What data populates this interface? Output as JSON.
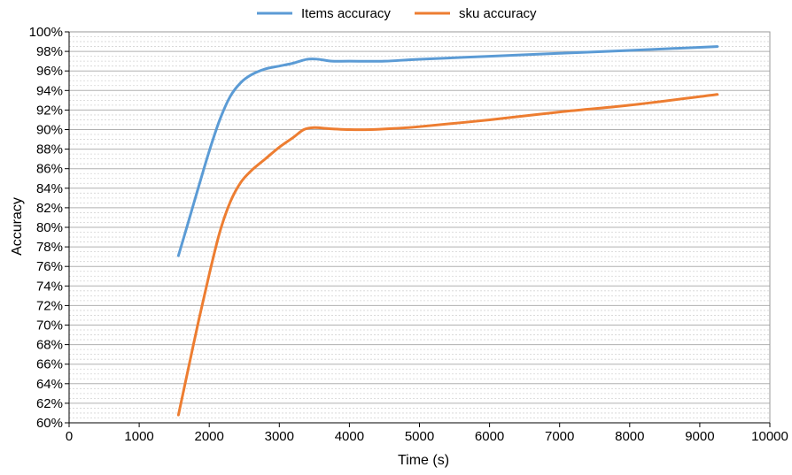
{
  "chart_data": {
    "type": "line",
    "xlabel": "Time (s)",
    "ylabel": "Accuracy",
    "xlim": [
      0,
      10000
    ],
    "ylim": [
      60,
      100
    ],
    "x_ticks": [
      0,
      1000,
      2000,
      3000,
      4000,
      5000,
      6000,
      7000,
      8000,
      9000,
      10000
    ],
    "x_tick_labels": [
      "0",
      "1000",
      "2000",
      "3000",
      "4000",
      "5000",
      "6000",
      "7000",
      "8000",
      "9000",
      "10000"
    ],
    "y_ticks": [
      60,
      62,
      64,
      66,
      68,
      70,
      72,
      74,
      76,
      78,
      80,
      82,
      84,
      86,
      88,
      90,
      92,
      94,
      96,
      98,
      100
    ],
    "y_tick_labels": [
      "60%",
      "62%",
      "64%",
      "66%",
      "68%",
      "70%",
      "72%",
      "74%",
      "76%",
      "78%",
      "80%",
      "82%",
      "84%",
      "86%",
      "88%",
      "90%",
      "92%",
      "94%",
      "96%",
      "98%",
      "100%"
    ],
    "grid": true,
    "legend_position": "top-center",
    "series": [
      {
        "name": "Items accuracy",
        "color": "#5b9bd5",
        "x": [
          1560,
          1700,
          1850,
          2000,
          2150,
          2300,
          2450,
          2600,
          2800,
          3000,
          3200,
          3400,
          3550,
          3750,
          4000,
          4500,
          5000,
          6000,
          7000,
          8000,
          9250
        ],
        "y": [
          77.1,
          80.5,
          84.2,
          87.8,
          91.0,
          93.4,
          94.8,
          95.6,
          96.2,
          96.5,
          96.8,
          97.2,
          97.2,
          97.0,
          97.0,
          97.0,
          97.2,
          97.5,
          97.8,
          98.1,
          98.5
        ]
      },
      {
        "name": "sku accuracy",
        "color": "#ed7d31",
        "x": [
          1560,
          1700,
          1850,
          2000,
          2150,
          2300,
          2450,
          2600,
          2800,
          3000,
          3200,
          3350,
          3500,
          3700,
          4000,
          4300,
          4600,
          5000,
          6000,
          7000,
          8000,
          9250
        ],
        "y": [
          60.8,
          65.5,
          70.5,
          75.2,
          79.5,
          82.6,
          84.6,
          85.8,
          87.0,
          88.2,
          89.2,
          90.0,
          90.2,
          90.1,
          90.0,
          90.0,
          90.1,
          90.3,
          91.0,
          91.8,
          92.5,
          93.6
        ]
      }
    ]
  }
}
